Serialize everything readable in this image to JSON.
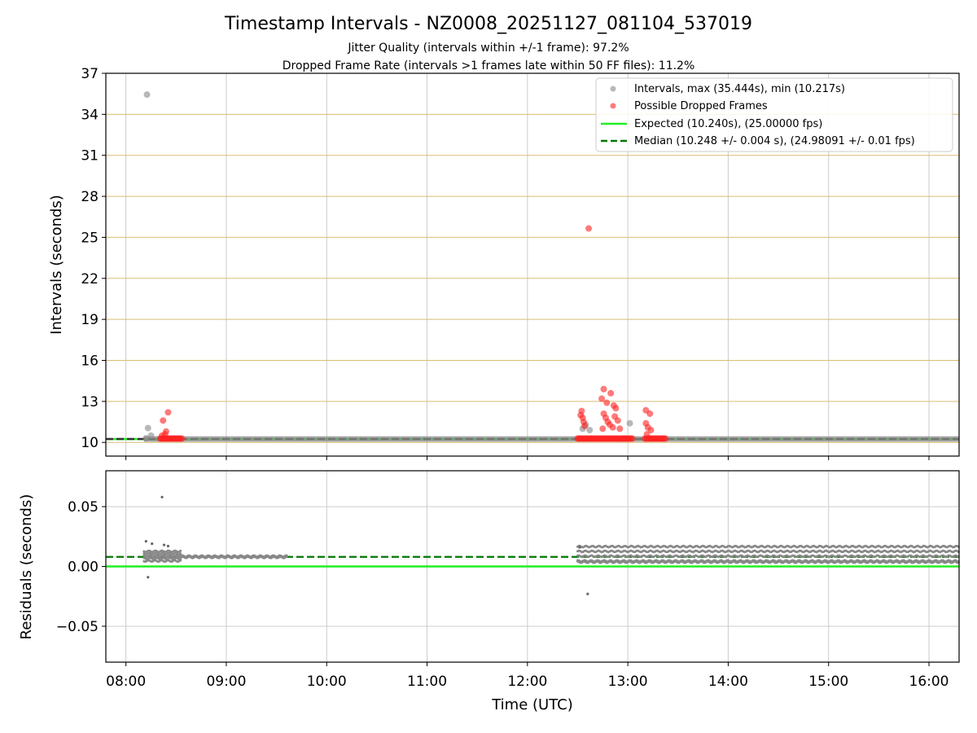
{
  "title": "Timestamp Intervals - NZ0008_20251127_081104_537019",
  "subtitle_1": "Jitter Quality (intervals within +/-1 frame): 97.2%",
  "subtitle_2": "Dropped Frame Rate (intervals >1 frames late within 50 FF files): 11.2%",
  "colors": {
    "expected": "#22ee22",
    "median": "#007700",
    "intervals": "#888888",
    "dropped": "#ff2222",
    "hgrid": "#d8be72",
    "grid": "#cccccc"
  },
  "chart_data": [
    {
      "type": "scatter",
      "name": "intervals-panel",
      "xlabel": "",
      "ylabel": "Intervals (seconds)",
      "xlim_hours": [
        7.8,
        16.3
      ],
      "ylim": [
        9,
        37
      ],
      "yticks": [
        10,
        13,
        16,
        19,
        22,
        25,
        28,
        31,
        34,
        37
      ],
      "ytick_labels": [
        "10",
        "13",
        "16",
        "19",
        "22",
        "25",
        "28",
        "31",
        "34",
        "37"
      ],
      "grid": true,
      "legend_position": "top-right",
      "legend": [
        "Intervals, max (35.444s), min (10.217s)",
        "Possible Dropped Frames",
        "Expected (10.240s), (25.00000 fps)",
        "Median (10.248 +/- 0.004 s), (24.98091 +/- 0.01 fps)"
      ],
      "expected_line": 10.24,
      "median_line": 10.248,
      "series": [
        {
          "name": "Intervals",
          "points": [
            [
              8.21,
              35.44
            ],
            [
              8.22,
              11.05
            ],
            [
              8.25,
              10.5
            ],
            [
              8.2,
              10.3
            ],
            [
              12.55,
              11.0
            ],
            [
              12.58,
              11.3
            ],
            [
              13.02,
              11.4
            ],
            [
              12.62,
              10.9
            ]
          ]
        },
        {
          "name": "Possible Dropped Frames",
          "points": [
            [
              8.37,
              11.6
            ],
            [
              8.42,
              12.2
            ],
            [
              8.4,
              10.8
            ],
            [
              8.36,
              10.5
            ],
            [
              8.39,
              10.6
            ],
            [
              12.61,
              25.65
            ],
            [
              12.54,
              12.3
            ],
            [
              12.53,
              12.0
            ],
            [
              12.55,
              11.8
            ],
            [
              12.56,
              11.5
            ],
            [
              12.57,
              11.2
            ],
            [
              12.76,
              13.9
            ],
            [
              12.74,
              13.2
            ],
            [
              12.79,
              12.9
            ],
            [
              12.83,
              13.6
            ],
            [
              12.86,
              12.7
            ],
            [
              12.88,
              12.5
            ],
            [
              12.76,
              12.1
            ],
            [
              12.78,
              11.8
            ],
            [
              12.8,
              11.5
            ],
            [
              12.82,
              11.3
            ],
            [
              12.75,
              11.0
            ],
            [
              12.85,
              11.1
            ],
            [
              12.87,
              11.9
            ],
            [
              12.9,
              11.6
            ],
            [
              12.92,
              11.0
            ],
            [
              13.18,
              12.35
            ],
            [
              13.22,
              12.1
            ],
            [
              13.18,
              11.4
            ],
            [
              13.2,
              11.1
            ],
            [
              13.23,
              10.9
            ],
            [
              13.19,
              10.6
            ]
          ]
        }
      ]
    },
    {
      "type": "scatter",
      "name": "residuals-panel",
      "xlabel": "Time (UTC)",
      "ylabel": "Residuals (seconds)",
      "xlim_hours": [
        7.8,
        16.3
      ],
      "ylim": [
        -0.08,
        0.08
      ],
      "yticks": [
        -0.05,
        0.0,
        0.05
      ],
      "ytick_labels": [
        "−0.05",
        "0.00",
        "0.05"
      ],
      "xticks_hours": [
        8,
        9,
        10,
        11,
        12,
        13,
        14,
        15,
        16
      ],
      "xtick_labels": [
        "08:00",
        "09:00",
        "10:00",
        "11:00",
        "12:00",
        "13:00",
        "14:00",
        "15:00",
        "16:00"
      ],
      "grid": true,
      "expected_line": 0.0,
      "median_line": 0.008,
      "series": [
        {
          "name": "Residual outliers",
          "points": [
            [
              8.36,
              0.058
            ],
            [
              8.2,
              0.021
            ],
            [
              8.26,
              0.019
            ],
            [
              8.22,
              -0.009
            ],
            [
              8.38,
              0.018
            ],
            [
              8.42,
              0.017
            ],
            [
              12.6,
              -0.023
            ],
            [
              12.52,
              0.016
            ]
          ]
        },
        {
          "name": "Residual bands",
          "bands": [
            {
              "x_from": 8.18,
              "x_to": 8.55,
              "y_values": [
                0.006,
                0.008,
                0.01,
                0.012,
                0.004
              ]
            },
            {
              "x_from": 8.55,
              "x_to": 9.6,
              "y_values": [
                0.007,
                0.008
              ]
            },
            {
              "x_from": 12.5,
              "x_to": 16.3,
              "y_values": [
                0.016,
                0.012,
                0.008,
                0.004,
                0.003
              ]
            }
          ]
        }
      ]
    }
  ]
}
